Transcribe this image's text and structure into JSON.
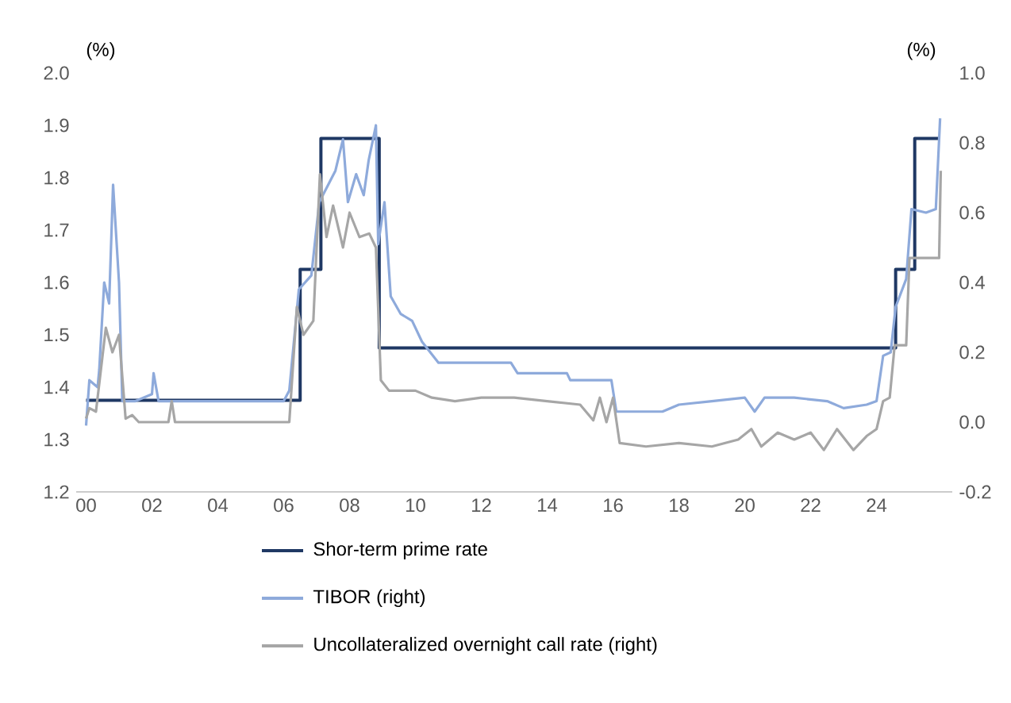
{
  "chart_data": {
    "type": "line",
    "ylabel": "(%)",
    "y2label": "(%)",
    "xlim": [
      1999.7,
      2026.3
    ],
    "xticks": [
      {
        "value": 2000,
        "label": "00"
      },
      {
        "value": 2002,
        "label": "02"
      },
      {
        "value": 2004,
        "label": "04"
      },
      {
        "value": 2006,
        "label": "06"
      },
      {
        "value": 2008,
        "label": "08"
      },
      {
        "value": 2010,
        "label": "10"
      },
      {
        "value": 2012,
        "label": "12"
      },
      {
        "value": 2014,
        "label": "14"
      },
      {
        "value": 2016,
        "label": "16"
      },
      {
        "value": 2018,
        "label": "18"
      },
      {
        "value": 2020,
        "label": "20"
      },
      {
        "value": 2022,
        "label": "22"
      },
      {
        "value": 2024,
        "label": "24"
      }
    ],
    "ylim": [
      1.2,
      2.0
    ],
    "yticks": [
      {
        "value": 1.2,
        "label": "1.2"
      },
      {
        "value": 1.3,
        "label": "1.3"
      },
      {
        "value": 1.4,
        "label": "1.4"
      },
      {
        "value": 1.5,
        "label": "1.5"
      },
      {
        "value": 1.6,
        "label": "1.6"
      },
      {
        "value": 1.7,
        "label": "1.7"
      },
      {
        "value": 1.8,
        "label": "1.8"
      },
      {
        "value": 1.9,
        "label": "1.9"
      },
      {
        "value": 2.0,
        "label": "2.0"
      }
    ],
    "y2lim": [
      -0.2,
      1.0
    ],
    "y2ticks": [
      {
        "value": -0.2,
        "label": "-0.2"
      },
      {
        "value": 0.0,
        "label": "0.0"
      },
      {
        "value": 0.2,
        "label": "0.2"
      },
      {
        "value": 0.4,
        "label": "0.4"
      },
      {
        "value": 0.6,
        "label": "0.6"
      },
      {
        "value": 0.8,
        "label": "0.8"
      },
      {
        "value": 1.0,
        "label": "1.0"
      }
    ],
    "legend": "bottom",
    "series": [
      {
        "name": "Shor-term  prime  rate",
        "type": "step",
        "color": "#1f3864",
        "x": [
          2000,
          2006.5,
          2007.13,
          2008.9,
          2024.58,
          2025.16,
          2025.88
        ],
        "values": [
          1.375,
          1.625,
          1.875,
          1.475,
          1.625,
          1.875,
          1.875
        ]
      },
      {
        "name": "TIBOR  (right)",
        "type": "line",
        "axis": "y2",
        "color": "#8eaadb",
        "x": [
          2000.0,
          2000.1,
          2000.35,
          2000.4,
          2000.55,
          2000.7,
          2000.82,
          2001.0,
          2001.1,
          2001.5,
          2002.0,
          2002.05,
          2002.2,
          2003.0,
          2004.0,
          2005.0,
          2006.0,
          2006.17,
          2006.46,
          2006.84,
          2007.08,
          2007.57,
          2007.8,
          2007.95,
          2008.2,
          2008.43,
          2008.58,
          2008.8,
          2008.87,
          2009.06,
          2009.25,
          2009.55,
          2009.9,
          2010.2,
          2010.7,
          2012.9,
          2013.1,
          2014.6,
          2014.7,
          2015.95,
          2016.1,
          2017.5,
          2018.0,
          2019.0,
          2020.0,
          2020.3,
          2020.6,
          2021.5,
          2022.5,
          2023.0,
          2023.7,
          2024.0,
          2024.2,
          2024.43,
          2024.58,
          2024.9,
          2025.06,
          2025.5,
          2025.8,
          2025.93
        ],
        "values": [
          -0.01,
          0.12,
          0.1,
          0.15,
          0.4,
          0.34,
          0.68,
          0.4,
          0.06,
          0.06,
          0.08,
          0.14,
          0.06,
          0.06,
          0.06,
          0.06,
          0.06,
          0.09,
          0.38,
          0.42,
          0.63,
          0.72,
          0.81,
          0.63,
          0.71,
          0.65,
          0.75,
          0.85,
          0.51,
          0.63,
          0.36,
          0.31,
          0.29,
          0.23,
          0.17,
          0.17,
          0.14,
          0.14,
          0.12,
          0.12,
          0.03,
          0.03,
          0.05,
          0.06,
          0.07,
          0.03,
          0.07,
          0.07,
          0.06,
          0.04,
          0.05,
          0.06,
          0.19,
          0.2,
          0.33,
          0.41,
          0.61,
          0.6,
          0.61,
          0.87
        ]
      },
      {
        "name": "Uncollateralized  overnight  call  rate  (right)",
        "type": "line",
        "axis": "y2",
        "color": "#a6a6a6",
        "x": [
          2000.0,
          2000.1,
          2000.3,
          2000.6,
          2000.8,
          2001.0,
          2001.2,
          2001.4,
          2001.6,
          2002.5,
          2002.6,
          2002.7,
          2004.0,
          2006.17,
          2006.4,
          2006.6,
          2006.9,
          2007.1,
          2007.3,
          2007.5,
          2007.8,
          2008.0,
          2008.3,
          2008.6,
          2008.8,
          2008.95,
          2009.2,
          2010.0,
          2010.5,
          2011.2,
          2012.0,
          2013.0,
          2014.0,
          2015.0,
          2015.4,
          2015.6,
          2015.8,
          2016.0,
          2016.2,
          2017.0,
          2018.0,
          2019.0,
          2019.8,
          2020.2,
          2020.5,
          2021.0,
          2021.5,
          2022.0,
          2022.4,
          2022.8,
          2023.3,
          2023.7,
          2024.0,
          2024.2,
          2024.4,
          2024.55,
          2024.9,
          2025.0,
          2025.9,
          2025.95
        ],
        "values": [
          0.01,
          0.04,
          0.03,
          0.27,
          0.2,
          0.25,
          0.01,
          0.02,
          0.0,
          0.0,
          0.06,
          0.0,
          0.0,
          0.0,
          0.33,
          0.25,
          0.29,
          0.71,
          0.53,
          0.62,
          0.5,
          0.6,
          0.53,
          0.54,
          0.5,
          0.12,
          0.09,
          0.09,
          0.07,
          0.06,
          0.07,
          0.07,
          0.06,
          0.05,
          0.005,
          0.07,
          0.0,
          0.07,
          -0.06,
          -0.07,
          -0.06,
          -0.07,
          -0.05,
          -0.02,
          -0.07,
          -0.03,
          -0.05,
          -0.03,
          -0.08,
          -0.02,
          -0.08,
          -0.04,
          -0.02,
          0.06,
          0.07,
          0.22,
          0.22,
          0.47,
          0.47,
          0.72
        ]
      }
    ]
  }
}
